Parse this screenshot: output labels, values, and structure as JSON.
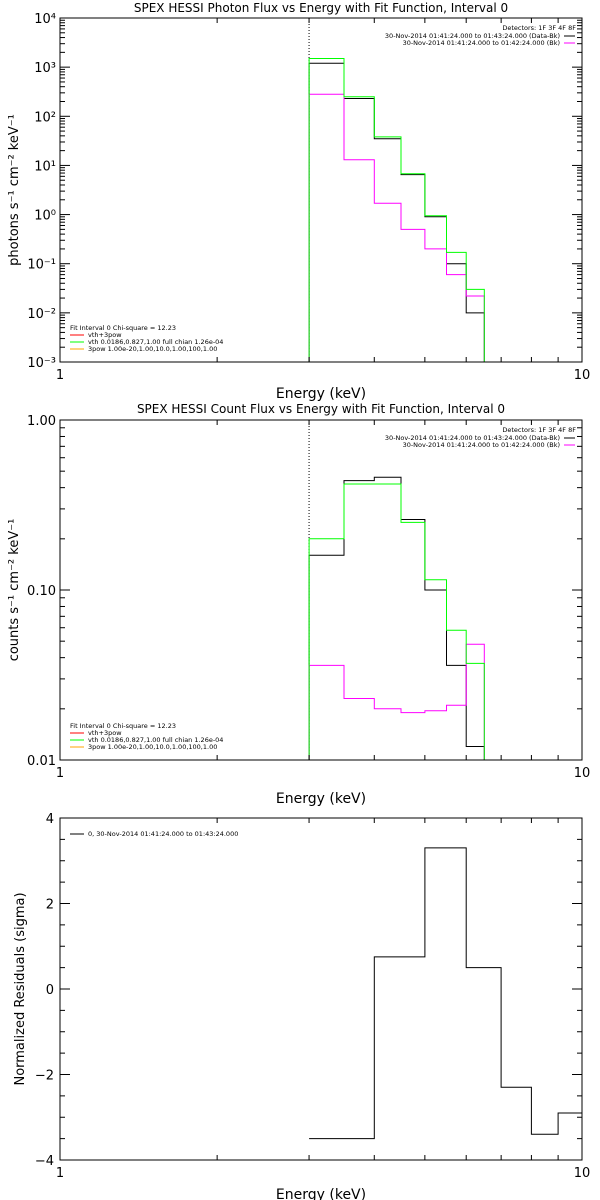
{
  "chart_data": [
    {
      "type": "line",
      "title": "SPEX HESSI Photon Flux vs Energy with Fit Function, Interval 0",
      "xlabel": "Energy (keV)",
      "ylabel": "photons s⁻¹ cm⁻² keV⁻¹",
      "xscale": "log",
      "yscale": "log",
      "xlim": [
        1,
        10
      ],
      "ylim": [
        0.001,
        10000
      ],
      "x_tick_labels": [
        "1",
        "10"
      ],
      "y_tick_labels": [
        "10⁻³",
        "10⁻²",
        "10⁻¹",
        "10⁰",
        "10¹",
        "10²",
        "10³",
        "10⁴"
      ],
      "vline_x": 3.0,
      "legend_top": {
        "header": "Detectors: 1F 3F 4F 8F",
        "entries": [
          {
            "text": "30-Nov-2014 01:41:24.000 to 01:43:24.000 (Data-Bk)",
            "color": "#000000"
          },
          {
            "text": "30-Nov-2014 01:41:24.000 to 01:42:24.000 (Bk)",
            "color": "#ff00ff"
          }
        ]
      },
      "legend_bottom": {
        "header": "Fit Interval 0   Chi-square = 12.23",
        "entries": [
          {
            "text": "vth+3pow",
            "color": "#ff0000"
          },
          {
            "text": "vth 0.0186,0.827,1.00  full chian 1.26e-04",
            "color": "#00ff00"
          },
          {
            "text": "3pow 1.00e-20,1.00,10.0,1.00,100,1.00",
            "color": "#ffa500"
          }
        ]
      },
      "bin_edges": [
        3.0,
        3.5,
        4.0,
        4.5,
        5.0,
        5.5,
        6.0,
        6.5,
        7.0,
        7.5,
        8.0,
        8.5,
        9.0,
        9.5,
        10.0
      ],
      "series": [
        {
          "name": "30-Nov-2014 01:41:24.000 to 01:43:24.000 (Data-Bk)",
          "color": "#000000",
          "values": [
            1200,
            230,
            35,
            6.5,
            0.9,
            0.1,
            0.01,
            0.0,
            0.0,
            0.0,
            0.0,
            0.0,
            0.0,
            0.0
          ]
        },
        {
          "name": "30-Nov-2014 01:41:24.000 to 01:42:24.000 (Bk)",
          "color": "#ff00ff",
          "values": [
            280,
            13,
            1.7,
            0.5,
            0.2,
            0.06,
            0.022,
            0.0,
            0.0,
            0.0,
            0.0,
            0.0,
            0.0,
            0.0
          ]
        },
        {
          "name": "vth 0.0186,0.827,1.00  full chian 1.26e-04",
          "color": "#00ff00",
          "values": [
            1500,
            250,
            38,
            6.8,
            0.95,
            0.17,
            0.03,
            0.0,
            0.0,
            0.0,
            0.0,
            0.0,
            0.0,
            0.0
          ]
        }
      ]
    },
    {
      "type": "line",
      "title": "SPEX HESSI Count Flux vs Energy with Fit Function, Interval 0",
      "xlabel": "Energy (keV)",
      "ylabel": "counts s⁻¹ cm⁻² keV⁻¹",
      "xscale": "log",
      "yscale": "log",
      "xlim": [
        1,
        10
      ],
      "ylim": [
        0.01,
        1.0
      ],
      "x_tick_labels": [
        "1",
        "10"
      ],
      "y_tick_labels": [
        "0.01",
        "0.10",
        "1.00"
      ],
      "vline_x": 3.0,
      "legend_top": {
        "header": "Detectors: 1F 3F 4F 8F",
        "entries": [
          {
            "text": "30-Nov-2014 01:41:24.000 to 01:43:24.000 (Data-Bk)",
            "color": "#000000"
          },
          {
            "text": "30-Nov-2014 01:41:24.000 to 01:42:24.000 (Bk)",
            "color": "#ff00ff"
          }
        ]
      },
      "legend_bottom": {
        "header": "Fit Interval 0   Chi-square = 12.23",
        "entries": [
          {
            "text": "vth+3pow",
            "color": "#ff0000"
          },
          {
            "text": "vth 0.0186,0.827,1.00  full chian 1.26e-04",
            "color": "#00ff00"
          },
          {
            "text": "3pow 1.00e-20,1.00,10.0,1.00,100,1.00",
            "color": "#ffa500"
          }
        ]
      },
      "bin_edges": [
        3.0,
        3.5,
        4.0,
        4.5,
        5.0,
        5.5,
        6.0,
        6.5,
        7.0,
        7.5,
        8.0,
        8.5,
        9.0,
        9.5,
        10.0
      ],
      "series": [
        {
          "name": "30-Nov-2014 01:41:24.000 to 01:43:24.000 (Data-Bk)",
          "color": "#000000",
          "values": [
            0.16,
            0.44,
            0.46,
            0.26,
            0.1,
            0.036,
            0.012,
            0.0,
            0.0,
            0.0,
            0.0,
            0.0,
            0.0,
            0.0
          ]
        },
        {
          "name": "30-Nov-2014 01:41:24.000 to 01:42:24.000 (Bk)",
          "color": "#ff00ff",
          "values": [
            0.036,
            0.023,
            0.02,
            0.019,
            0.0195,
            0.021,
            0.048,
            0.0,
            0.0,
            0.0,
            0.0,
            0.0,
            0.0,
            0.0
          ]
        },
        {
          "name": "vth 0.0186,0.827,1.00  full chian 1.26e-04",
          "color": "#00ff00",
          "values": [
            0.2,
            0.42,
            0.42,
            0.25,
            0.115,
            0.058,
            0.037,
            0.0,
            0.0,
            0.0,
            0.0,
            0.0,
            0.0,
            0.0
          ]
        }
      ]
    },
    {
      "type": "line",
      "title": "",
      "xlabel": "Energy (keV)",
      "ylabel": "Normalized Residuals (sigma)",
      "xscale": "log",
      "yscale": "linear",
      "xlim": [
        1,
        10
      ],
      "ylim": [
        -4,
        4
      ],
      "x_tick_labels": [
        "1",
        "10"
      ],
      "y_tick_labels": [
        "−4",
        "−2",
        "0",
        "2",
        "4"
      ],
      "legend_top": {
        "header": "",
        "entries": [
          {
            "text": "0, 30-Nov-2014 01:41:24.000 to 01:43:24.000",
            "color": "#000000"
          }
        ]
      },
      "bin_edges": [
        3.0,
        4.0,
        5.0,
        6.0,
        7.0,
        8.0,
        9.0,
        10.0
      ],
      "series": [
        {
          "name": "0, 30-Nov-2014 01:41:24.000 to 01:43:24.000",
          "color": "#000000",
          "values": [
            -3.5,
            0.75,
            3.3,
            0.5,
            -2.3,
            -3.4,
            -2.9
          ]
        }
      ]
    }
  ]
}
